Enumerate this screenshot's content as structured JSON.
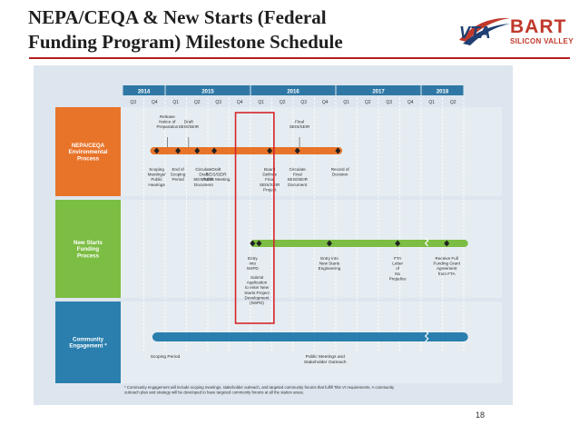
{
  "header": {
    "title_line1": "NEPA/CEQA & New Starts (Federal",
    "title_line2": "Funding Program) Milestone Schedule",
    "logo_vta": "VTA",
    "logo_bart": "BART",
    "logo_sub": "SILICON VALLEY"
  },
  "years": [
    {
      "label": "2014",
      "start": 0,
      "span": 2
    },
    {
      "label": "2015",
      "start": 2,
      "span": 4
    },
    {
      "label": "2016",
      "start": 6,
      "span": 4
    },
    {
      "label": "2017",
      "start": 10,
      "span": 4
    },
    {
      "label": "2018",
      "start": 14,
      "span": 2
    }
  ],
  "quarters": [
    "Q3",
    "Q4",
    "Q1",
    "Q2",
    "Q3",
    "Q4",
    "Q1",
    "Q2",
    "Q3",
    "Q4",
    "Q1",
    "Q2",
    "Q3",
    "Q4",
    "Q1",
    "Q2"
  ],
  "rows": [
    {
      "label": [
        "NEPA/CEQA",
        "Environmental",
        "Process"
      ],
      "color": "#e8742a"
    },
    {
      "label": [
        "New Starts",
        "Funding",
        "Process"
      ],
      "color": "#7cbd43"
    },
    {
      "label": [
        "Community",
        "Engagement *"
      ],
      "color": "#2b7fae"
    }
  ],
  "nepa_above": [
    {
      "text": [
        "Release",
        "Notice of",
        "Preparation"
      ],
      "q": 2.1
    },
    {
      "text": [
        "Draft",
        "SEIS/SEIR"
      ],
      "q": 3.1
    },
    {
      "text": [
        "Final",
        "SEIS/SEIR"
      ],
      "q": 8.3
    }
  ],
  "nepa_below": [
    {
      "text": [
        "Scoping",
        "Meetings/",
        "Public",
        "Hearings"
      ],
      "q": 1.6
    },
    {
      "text": [
        "End of",
        "Scoping",
        "Period"
      ],
      "q": 2.6
    },
    {
      "text": [
        "Draft",
        "SEIS/SEIR",
        "Public Meeting"
      ],
      "q": 4.4
    },
    {
      "text": [
        "Circulate",
        "Draft",
        "SEIS/SEIR",
        "Document"
      ],
      "q": 3.8
    },
    {
      "text": [
        "Board",
        "Defines",
        "Final",
        "SEIS/SEIR",
        "Project"
      ],
      "q": 6.9
    },
    {
      "text": [
        "Circulate",
        "Final",
        "SEIS/SEIR",
        "Document"
      ],
      "q": 8.2
    },
    {
      "text": [
        "Record of",
        "Decision"
      ],
      "q": 10.2
    }
  ],
  "starts_below": [
    {
      "text": [
        "Entry",
        "into",
        "NSPD"
      ],
      "q": 6.1
    },
    {
      "text": [
        "Submit",
        "Application",
        "to enter New",
        "Starts Project",
        "Development",
        "(NSPD)"
      ],
      "q": 6.3
    },
    {
      "text": [
        "Entry into",
        "New Starts",
        "Engineering"
      ],
      "q": 9.7
    },
    {
      "text": [
        "FTA",
        "Letter",
        "of",
        "No",
        "Prejudice"
      ],
      "q": 12.9
    },
    {
      "text": [
        "Receive Full",
        "Funding Grant",
        "Agreement",
        "from FTA"
      ],
      "q": 15.2
    }
  ],
  "community_below": [
    {
      "text": [
        "Scoping Period"
      ],
      "q": 2.0
    },
    {
      "text": [
        "Public Meetings and",
        "Stakeholder Outreach"
      ],
      "q": 9.5
    }
  ],
  "footnote": [
    "* Community engagement will include scoping meetings, stakeholder outreach, and targeted community forums that fulfill Title VI requirements. A community",
    "outreach plan and strategy will be developed to have targeted community forums at all the station areas."
  ],
  "page_number": "18",
  "colors": {
    "nepa": "#e8742a",
    "starts": "#7cbd43",
    "community": "#2b7fae",
    "highlight": "#d6262b",
    "header_bar": "#2f78a6"
  }
}
